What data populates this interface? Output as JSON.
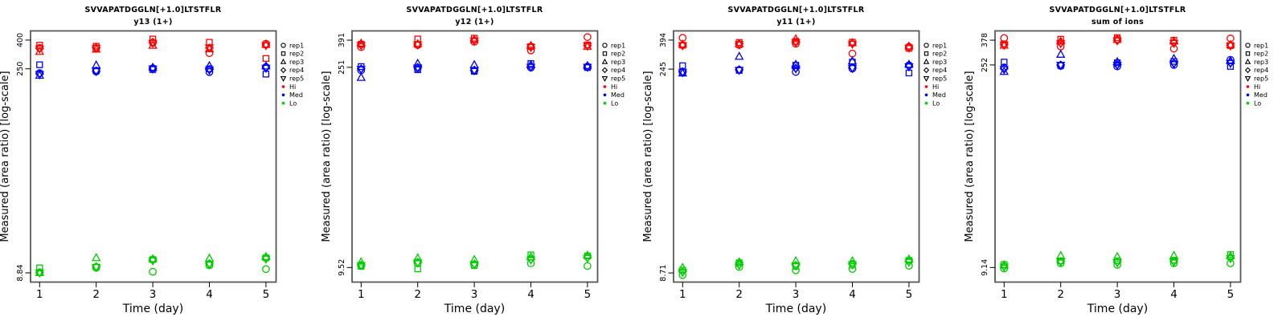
{
  "page": {
    "background": "#ffffff",
    "frame_color": "#595959"
  },
  "peptide": "SVVAPATDGGLN[+1.0]LTSTFLR",
  "axis": {
    "xlabel": "Time (day)",
    "ylabel": "Measured (area ratio) [log-scale]",
    "x_ticks": [
      "1",
      "2",
      "3",
      "4",
      "5"
    ]
  },
  "legend": {
    "reps": [
      {
        "label": "rep1",
        "marker": "circle"
      },
      {
        "label": "rep2",
        "marker": "square"
      },
      {
        "label": "rep3",
        "marker": "triangle-up"
      },
      {
        "label": "rep4",
        "marker": "diamond"
      },
      {
        "label": "rep5",
        "marker": "triangle-down"
      }
    ],
    "groups": [
      {
        "label": "Hi",
        "color": "#FF0000"
      },
      {
        "label": "Med",
        "color": "#0000FF"
      },
      {
        "label": "Lo",
        "color": "#00CC00"
      }
    ]
  },
  "chart_data": [
    {
      "type": "scatter",
      "title": "SVVAPATDGGLN[+1.0]LTSTFLR",
      "subtitle": "y13 (1+)",
      "xlabel": "Time (day)",
      "ylabel": "Measured (area ratio) [log-scale]",
      "x": [
        1,
        2,
        3,
        4,
        5
      ],
      "y_scale": "log",
      "y_ticks": [
        400,
        250,
        8.84
      ],
      "ylim": [
        7.6,
        465
      ],
      "series": [
        {
          "group": "Hi",
          "rep": "rep1",
          "marker": "circle",
          "color": "#FF0000",
          "values": [
            352,
            350,
            383,
            323,
            377
          ]
        },
        {
          "group": "Hi",
          "rep": "rep2",
          "marker": "square",
          "color": "#FF0000",
          "values": [
            368,
            362,
            407,
            386,
            296
          ]
        },
        {
          "group": "Hi",
          "rep": "rep3",
          "marker": "triangle-up",
          "color": "#FF0000",
          "values": [
            331,
            344,
            366,
            346,
            371
          ]
        },
        {
          "group": "Hi",
          "rep": "rep4",
          "marker": "diamond",
          "color": "#FF0000",
          "values": [
            350,
            354,
            387,
            352,
            369
          ]
        },
        {
          "group": "Hi",
          "rep": "rep5",
          "marker": "triangle-down",
          "color": "#FF0000",
          "values": [
            347,
            351,
            381,
            354,
            367
          ]
        },
        {
          "group": "Med",
          "rep": "rep1",
          "marker": "circle",
          "color": "#0000FF",
          "values": [
            233,
            239,
            252,
            237,
            257
          ]
        },
        {
          "group": "Med",
          "rep": "rep2",
          "marker": "square",
          "color": "#0000FF",
          "values": [
            267,
            243,
            247,
            250,
            229
          ]
        },
        {
          "group": "Med",
          "rep": "rep3",
          "marker": "triangle-up",
          "color": "#0000FF",
          "values": [
            224,
            265,
            255,
            262,
            261
          ]
        },
        {
          "group": "Med",
          "rep": "rep4",
          "marker": "diamond",
          "color": "#0000FF",
          "values": [
            230,
            242,
            251,
            247,
            255
          ]
        },
        {
          "group": "Med",
          "rep": "rep5",
          "marker": "triangle-down",
          "color": "#0000FF",
          "values": [
            228,
            240,
            250,
            245,
            253
          ]
        },
        {
          "group": "Lo",
          "rep": "rep1",
          "marker": "circle",
          "color": "#00CC00",
          "values": [
            8.9,
            9.6,
            9.0,
            10.0,
            9.4
          ]
        },
        {
          "group": "Lo",
          "rep": "rep2",
          "marker": "square",
          "color": "#00CC00",
          "values": [
            9.6,
            9.7,
            11.0,
            10.1,
            11.3
          ]
        },
        {
          "group": "Lo",
          "rep": "rep3",
          "marker": "triangle-up",
          "color": "#00CC00",
          "values": [
            8.85,
            11.3,
            11.1,
            11.2,
            11.5
          ]
        },
        {
          "group": "Lo",
          "rep": "rep4",
          "marker": "diamond",
          "color": "#00CC00",
          "values": [
            8.9,
            9.8,
            10.9,
            10.3,
            11.2
          ]
        },
        {
          "group": "Lo",
          "rep": "rep5",
          "marker": "triangle-down",
          "color": "#00CC00",
          "values": [
            8.87,
            9.7,
            10.8,
            10.2,
            11.1
          ]
        }
      ]
    },
    {
      "type": "scatter",
      "title": "SVVAPATDGGLN[+1.0]LTSTFLR",
      "subtitle": "y12 (1+)",
      "xlabel": "Time (day)",
      "ylabel": "Measured (area ratio) [log-scale]",
      "x": [
        1,
        2,
        3,
        4,
        5
      ],
      "y_scale": "log",
      "y_ticks": [
        391,
        251,
        9.52
      ],
      "ylim": [
        7.5,
        455
      ],
      "series": [
        {
          "group": "Hi",
          "rep": "rep1",
          "marker": "circle",
          "color": "#FF0000",
          "values": [
            349,
            361,
            381,
            331,
            411
          ]
        },
        {
          "group": "Hi",
          "rep": "rep2",
          "marker": "square",
          "color": "#FF0000",
          "values": [
            366,
            399,
            404,
            352,
            362
          ]
        },
        {
          "group": "Hi",
          "rep": "rep3",
          "marker": "triangle-up",
          "color": "#FF0000",
          "values": [
            371,
            368,
            394,
            357,
            352
          ]
        },
        {
          "group": "Hi",
          "rep": "rep4",
          "marker": "diamond",
          "color": "#FF0000",
          "values": [
            361,
            365,
            390,
            350,
            358
          ]
        },
        {
          "group": "Hi",
          "rep": "rep5",
          "marker": "triangle-down",
          "color": "#FF0000",
          "values": [
            359,
            363,
            388,
            348,
            356
          ]
        },
        {
          "group": "Med",
          "rep": "rep1",
          "marker": "circle",
          "color": "#0000FF",
          "values": [
            239,
            247,
            237,
            250,
            254
          ]
        },
        {
          "group": "Med",
          "rep": "rep2",
          "marker": "square",
          "color": "#0000FF",
          "values": [
            254,
            241,
            235,
            267,
            250
          ]
        },
        {
          "group": "Med",
          "rep": "rep3",
          "marker": "triangle-up",
          "color": "#0000FF",
          "values": [
            212,
            267,
            261,
            261,
            257
          ]
        },
        {
          "group": "Med",
          "rep": "rep4",
          "marker": "diamond",
          "color": "#0000FF",
          "values": [
            245,
            251,
            240,
            254,
            253
          ]
        },
        {
          "group": "Med",
          "rep": "rep5",
          "marker": "triangle-down",
          "color": "#0000FF",
          "values": [
            243,
            249,
            238,
            252,
            252
          ]
        },
        {
          "group": "Lo",
          "rep": "rep1",
          "marker": "circle",
          "color": "#00CC00",
          "values": [
            9.8,
            10.2,
            9.9,
            10.2,
            9.75
          ]
        },
        {
          "group": "Lo",
          "rep": "rep2",
          "marker": "square",
          "color": "#00CC00",
          "values": [
            9.7,
            9.3,
            9.85,
            11.7,
            11.5
          ]
        },
        {
          "group": "Lo",
          "rep": "rep3",
          "marker": "triangle-up",
          "color": "#00CC00",
          "values": [
            10.4,
            11.1,
            10.8,
            11.3,
            11.6
          ]
        },
        {
          "group": "Lo",
          "rep": "rep4",
          "marker": "diamond",
          "color": "#00CC00",
          "values": [
            9.9,
            10.4,
            10.1,
            10.9,
            11.2
          ]
        },
        {
          "group": "Lo",
          "rep": "rep5",
          "marker": "triangle-down",
          "color": "#00CC00",
          "values": [
            9.85,
            10.3,
            10.0,
            10.8,
            11.1
          ]
        }
      ]
    },
    {
      "type": "scatter",
      "title": "SVVAPATDGGLN[+1.0]LTSTFLR",
      "subtitle": "y11 (1+)",
      "xlabel": "Time (day)",
      "ylabel": "Measured (area ratio) [log-scale]",
      "x": [
        1,
        2,
        3,
        4,
        5
      ],
      "y_scale": "log",
      "y_ticks": [
        394,
        245,
        8.71
      ],
      "ylim": [
        7.5,
        458
      ],
      "series": [
        {
          "group": "Hi",
          "rep": "rep1",
          "marker": "circle",
          "color": "#FF0000",
          "values": [
            409,
            363,
            371,
            316,
            353
          ]
        },
        {
          "group": "Hi",
          "rep": "rep2",
          "marker": "square",
          "color": "#FF0000",
          "values": [
            362,
            379,
            386,
            381,
            344
          ]
        },
        {
          "group": "Hi",
          "rep": "rep3",
          "marker": "triangle-up",
          "color": "#FF0000",
          "values": [
            367,
            369,
            401,
            376,
            356
          ]
        },
        {
          "group": "Hi",
          "rep": "rep4",
          "marker": "diamond",
          "color": "#FF0000",
          "values": [
            363,
            371,
            381,
            373,
            349
          ]
        },
        {
          "group": "Hi",
          "rep": "rep5",
          "marker": "triangle-down",
          "color": "#FF0000",
          "values": [
            360,
            367,
            379,
            370,
            347
          ]
        },
        {
          "group": "Med",
          "rep": "rep1",
          "marker": "circle",
          "color": "#0000FF",
          "values": [
            233,
            242,
            234,
            247,
            261
          ]
        },
        {
          "group": "Med",
          "rep": "rep2",
          "marker": "square",
          "color": "#0000FF",
          "values": [
            259,
            240,
            261,
            275,
            230
          ]
        },
        {
          "group": "Med",
          "rep": "rep3",
          "marker": "triangle-up",
          "color": "#0000FF",
          "values": [
            229,
            301,
            264,
            279,
            264
          ]
        },
        {
          "group": "Med",
          "rep": "rep4",
          "marker": "diamond",
          "color": "#0000FF",
          "values": [
            235,
            243,
            249,
            251,
            257
          ]
        },
        {
          "group": "Med",
          "rep": "rep5",
          "marker": "triangle-down",
          "color": "#0000FF",
          "values": [
            232,
            241,
            247,
            249,
            255
          ]
        },
        {
          "group": "Lo",
          "rep": "rep1",
          "marker": "circle",
          "color": "#00CC00",
          "values": [
            8.4,
            9.6,
            9.1,
            9.3,
            9.8
          ]
        },
        {
          "group": "Lo",
          "rep": "rep2",
          "marker": "square",
          "color": "#00CC00",
          "values": [
            9.1,
            10.3,
            9.7,
            9.9,
            10.7
          ]
        },
        {
          "group": "Lo",
          "rep": "rep3",
          "marker": "triangle-up",
          "color": "#00CC00",
          "values": [
            9.5,
            10.4,
            10.6,
            10.6,
            10.9
          ]
        },
        {
          "group": "Lo",
          "rep": "rep4",
          "marker": "diamond",
          "color": "#00CC00",
          "values": [
            8.9,
            10.0,
            9.9,
            10.1,
            10.5
          ]
        },
        {
          "group": "Lo",
          "rep": "rep5",
          "marker": "triangle-down",
          "color": "#00CC00",
          "values": [
            8.8,
            9.9,
            9.8,
            10.0,
            10.4
          ]
        }
      ]
    },
    {
      "type": "scatter",
      "title": "SVVAPATDGGLN[+1.0]LTSTFLR",
      "subtitle": "sum of ions",
      "xlabel": "Time (day)",
      "ylabel": "Measured (area ratio) [log-scale]",
      "x": [
        1,
        2,
        3,
        4,
        5
      ],
      "y_scale": "log",
      "y_ticks": [
        378,
        252,
        9.14
      ],
      "ylim": [
        7.2,
        440
      ],
      "series": [
        {
          "group": "Hi",
          "rep": "rep1",
          "marker": "circle",
          "color": "#FF0000",
          "values": [
            391,
            341,
            384,
            329,
            389
          ]
        },
        {
          "group": "Hi",
          "rep": "rep2",
          "marker": "square",
          "color": "#FF0000",
          "values": [
            356,
            384,
            394,
            378,
            346
          ]
        },
        {
          "group": "Hi",
          "rep": "rep3",
          "marker": "triangle-up",
          "color": "#FF0000",
          "values": [
            347,
            371,
            381,
            371,
            351
          ]
        },
        {
          "group": "Hi",
          "rep": "rep4",
          "marker": "diamond",
          "color": "#FF0000",
          "values": [
            351,
            361,
            377,
            362,
            348
          ]
        },
        {
          "group": "Hi",
          "rep": "rep5",
          "marker": "triangle-down",
          "color": "#FF0000",
          "values": [
            349,
            358,
            375,
            360,
            345
          ]
        },
        {
          "group": "Med",
          "rep": "rep1",
          "marker": "circle",
          "color": "#0000FF",
          "values": [
            242,
            248,
            246,
            252,
            274
          ]
        },
        {
          "group": "Med",
          "rep": "rep2",
          "marker": "square",
          "color": "#0000FF",
          "values": [
            264,
            250,
            261,
            267,
            246
          ]
        },
        {
          "group": "Med",
          "rep": "rep3",
          "marker": "triangle-up",
          "color": "#0000FF",
          "values": [
            226,
            299,
            265,
            279,
            269
          ]
        },
        {
          "group": "Med",
          "rep": "rep4",
          "marker": "diamond",
          "color": "#0000FF",
          "values": [
            237,
            252,
            253,
            260,
            262
          ]
        },
        {
          "group": "Med",
          "rep": "rep5",
          "marker": "triangle-down",
          "color": "#0000FF",
          "values": [
            234,
            251,
            251,
            257,
            259
          ]
        },
        {
          "group": "Lo",
          "rep": "rep1",
          "marker": "circle",
          "color": "#00CC00",
          "values": [
            9.0,
            9.8,
            9.55,
            9.8,
            9.8
          ]
        },
        {
          "group": "Lo",
          "rep": "rep2",
          "marker": "square",
          "color": "#00CC00",
          "values": [
            9.6,
            10.2,
            10.2,
            10.3,
            11.3
          ]
        },
        {
          "group": "Lo",
          "rep": "rep3",
          "marker": "triangle-up",
          "color": "#00CC00",
          "values": [
            9.5,
            11.1,
            10.9,
            11.1,
            11.0
          ]
        },
        {
          "group": "Lo",
          "rep": "rep4",
          "marker": "diamond",
          "color": "#00CC00",
          "values": [
            9.3,
            10.1,
            10.0,
            10.1,
            10.7
          ]
        },
        {
          "group": "Lo",
          "rep": "rep5",
          "marker": "triangle-down",
          "color": "#00CC00",
          "values": [
            9.25,
            10.0,
            9.9,
            10.0,
            10.6
          ]
        }
      ]
    }
  ]
}
